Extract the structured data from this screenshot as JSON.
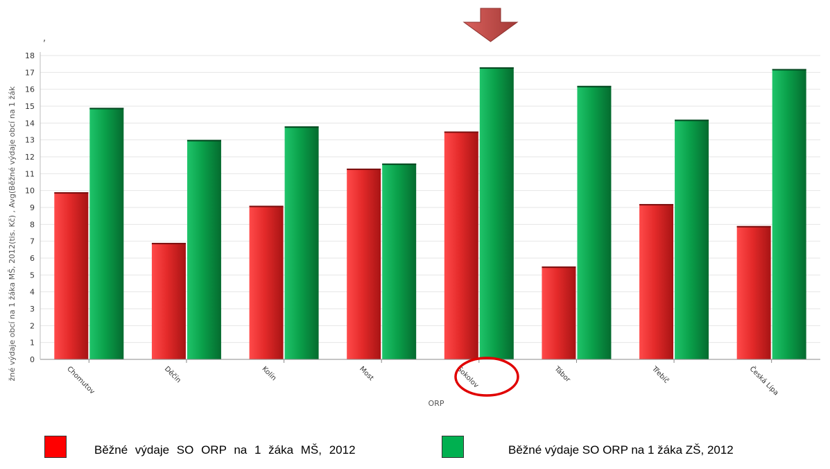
{
  "chart_data": {
    "type": "bar",
    "categories": [
      "Chomutov",
      "Děčín",
      "Kolín",
      "Most",
      "Sokolov",
      "Tábor",
      "Třebíč",
      "Česká Lípa"
    ],
    "series": [
      {
        "name": "Běžné výdaje SO ORP na 1 žáka MŠ, 2012",
        "color": "#e8262a",
        "values": [
          9.9,
          6.9,
          9.1,
          11.3,
          13.5,
          5.5,
          9.2,
          7.9
        ]
      },
      {
        "name": "Běžné výdaje SO ORP na 1 žáka ZŠ, 2012",
        "color": "#0aa04a",
        "values": [
          14.9,
          13.0,
          13.8,
          11.6,
          17.3,
          16.2,
          14.2,
          17.2
        ]
      }
    ],
    "xlabel": "ORP",
    "ylabel": "žné výdaje obcí na 1 žáka MŠ, 2012(tis. Kč) , Avg(Běžné výdaje obcí na 1 žák",
    "ylim": [
      0,
      18
    ],
    "yticks": [
      "0",
      "1",
      "2",
      "3",
      "4",
      "5",
      "6",
      "7",
      "8",
      "9",
      "10",
      "11",
      "12",
      "13",
      "14",
      "15",
      "16",
      "17",
      "18"
    ],
    "grid": true,
    "highlighted_category": "Sokolov"
  },
  "annotations": {
    "arrow": "down-arrow-icon",
    "circle": "highlight-circle",
    "arrow_color": "#c0504d",
    "circle_color": "#e00000"
  },
  "legend": {
    "items": [
      {
        "label": "Běžné výdaje SO ORP na 1 žáka MŠ, 2012",
        "color": "#ff0000"
      },
      {
        "label": "Běžné výdaje SO ORP na 1 žáka ZŠ, 2012",
        "color": "#00b050"
      }
    ]
  }
}
